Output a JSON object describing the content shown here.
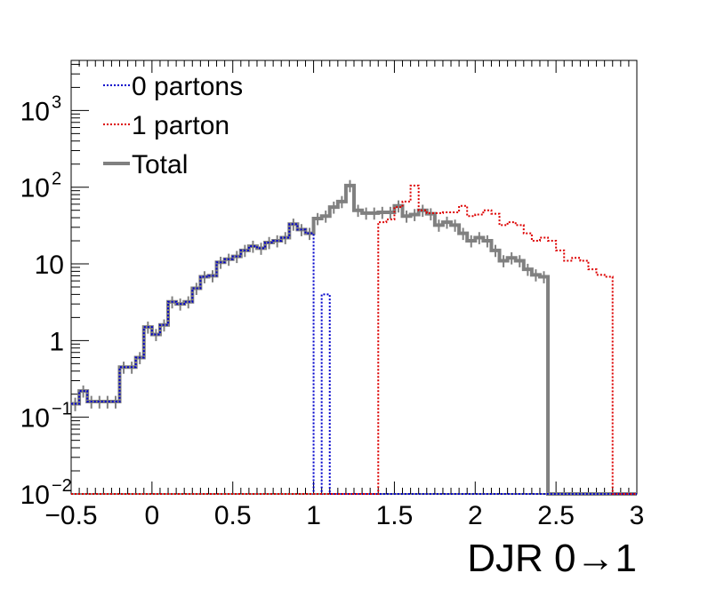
{
  "chart_data": {
    "type": "line",
    "style": "step-histogram",
    "xlabel": "DJR 0→1",
    "ylabel": "",
    "title": "",
    "xlim": [
      -0.5,
      3.0
    ],
    "ylim": [
      0.01,
      4500
    ],
    "y_scale": "log",
    "grid": false,
    "legend_position": "top-left",
    "x_ticks": [
      "−0.5",
      "0",
      "0.5",
      "1",
      "1.5",
      "2",
      "2.5",
      "3"
    ],
    "x_tick_values": [
      -0.5,
      0,
      0.5,
      1,
      1.5,
      2,
      2.5,
      3
    ],
    "y_ticks": [
      {
        "value": 0.01,
        "base": "10",
        "exp": "−2"
      },
      {
        "value": 0.1,
        "base": "10",
        "exp": "−1"
      },
      {
        "value": 1,
        "base": "1",
        "exp": ""
      },
      {
        "value": 10,
        "base": "10",
        "exp": ""
      },
      {
        "value": 100,
        "base": "10",
        "exp": "2"
      },
      {
        "value": 1000,
        "base": "10",
        "exp": "3"
      }
    ],
    "bin_edges_start": -0.5,
    "bin_width": 0.05,
    "series": [
      {
        "name": "0 partons",
        "color": "#0000cc",
        "dash": "dotted",
        "values": [
          0.15,
          0.22,
          0.16,
          0.16,
          0.16,
          0.16,
          0.45,
          0.45,
          0.6,
          1.5,
          1.2,
          1.6,
          3.2,
          3.0,
          3.2,
          4.8,
          6.8,
          7.0,
          10.5,
          11.5,
          12.5,
          15,
          17,
          16,
          19,
          20,
          22,
          33,
          28,
          25,
          0,
          4.0,
          0,
          0,
          0,
          0,
          0,
          0,
          0,
          0,
          0,
          0,
          0,
          0,
          0,
          0,
          0,
          0,
          0,
          0,
          0,
          0,
          0,
          0,
          0,
          0,
          0,
          0,
          0,
          0,
          0,
          0,
          0,
          0,
          0,
          0,
          0,
          0,
          0,
          0
        ]
      },
      {
        "name": "1 parton",
        "color": "#dd0000",
        "dash": "dotted",
        "values": [
          0,
          0,
          0,
          0,
          0,
          0,
          0,
          0,
          0,
          0,
          0,
          0,
          0,
          0,
          0,
          0,
          0,
          0,
          0,
          0,
          0,
          0,
          0,
          0,
          0,
          0,
          0,
          0,
          0,
          0,
          0,
          0,
          0,
          0,
          0,
          0,
          0,
          0,
          35,
          38,
          55,
          65,
          105,
          50,
          46,
          46,
          47,
          47,
          57,
          42,
          44,
          50,
          45,
          32,
          35,
          32,
          25,
          20,
          22,
          20,
          15,
          11,
          12,
          11,
          8.5,
          7.2,
          6.8,
          0,
          0,
          0
        ]
      },
      {
        "name": "Total",
        "color": "#808080",
        "dash": "solid",
        "values": [
          0.15,
          0.22,
          0.16,
          0.16,
          0.16,
          0.16,
          0.45,
          0.45,
          0.6,
          1.5,
          1.2,
          1.6,
          3.2,
          3.0,
          3.2,
          4.8,
          6.8,
          7.0,
          10.5,
          11.5,
          12.5,
          15,
          17,
          16,
          19,
          20,
          22,
          33,
          28,
          25,
          39,
          42,
          55,
          65,
          105,
          50,
          46,
          46,
          47,
          47,
          57,
          42,
          44,
          50,
          45,
          32,
          35,
          32,
          25,
          20,
          22,
          20,
          15,
          11,
          12,
          11,
          8.5,
          7.2,
          6.8,
          0,
          0,
          0,
          0,
          0,
          0,
          0,
          0,
          0,
          0,
          0
        ]
      }
    ]
  }
}
